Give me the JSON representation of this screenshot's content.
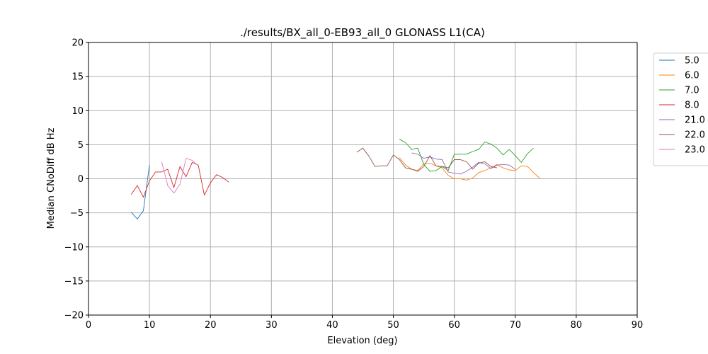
{
  "chart_data": {
    "type": "line",
    "title": "./results/BX_all_0-EB93_all_0 GLONASS L1(CA)",
    "xlabel": "Elevation (deg)",
    "ylabel": "Median CNoDiff dB Hz",
    "xlim": [
      0,
      90
    ],
    "ylim": [
      -20,
      20
    ],
    "xticks": [
      0,
      10,
      20,
      30,
      40,
      50,
      60,
      70,
      80,
      90
    ],
    "yticks": [
      -20,
      -15,
      -10,
      -5,
      0,
      5,
      10,
      15,
      20
    ],
    "xtick_labels": [
      "0",
      "10",
      "20",
      "30",
      "40",
      "50",
      "60",
      "70",
      "80",
      "90"
    ],
    "ytick_labels": [
      "−20",
      "−15",
      "−10",
      "−5",
      "0",
      "5",
      "10",
      "15",
      "20"
    ],
    "grid": true,
    "legend_position": "outside-right",
    "series": [
      {
        "name": "5.0",
        "color": "#1f77b4",
        "points": [
          [
            7,
            -4.9
          ],
          [
            8,
            -5.9
          ],
          [
            9,
            -4.7
          ],
          [
            10,
            2.0
          ]
        ]
      },
      {
        "name": "6.0",
        "color": "#ff7f0e",
        "points": [
          [
            51,
            3.1
          ],
          [
            52,
            2.0
          ],
          [
            53,
            1.4
          ],
          [
            54,
            1.2
          ],
          [
            55,
            2.2
          ],
          [
            56,
            2.3
          ],
          [
            57,
            1.9
          ],
          [
            58,
            1.6
          ],
          [
            59,
            0.5
          ],
          [
            60,
            0.0
          ],
          [
            61,
            0.0
          ],
          [
            62,
            -0.2
          ],
          [
            63,
            0.1
          ],
          [
            64,
            0.9
          ],
          [
            65,
            1.2
          ],
          [
            66,
            1.6
          ],
          [
            67,
            2.1
          ],
          [
            68,
            1.6
          ],
          [
            69,
            1.3
          ],
          [
            70,
            1.2
          ],
          [
            71,
            1.9
          ],
          [
            72,
            1.8
          ],
          [
            73,
            0.9
          ],
          [
            74,
            0.1
          ]
        ]
      },
      {
        "name": "7.0",
        "color": "#2ca02c",
        "points": [
          [
            51,
            5.8
          ],
          [
            52,
            5.3
          ],
          [
            53,
            4.3
          ],
          [
            54,
            4.5
          ],
          [
            55,
            2.1
          ],
          [
            56,
            1.1
          ],
          [
            57,
            1.2
          ],
          [
            58,
            1.8
          ],
          [
            59,
            1.2
          ],
          [
            60,
            3.6
          ],
          [
            61,
            3.6
          ],
          [
            62,
            3.6
          ],
          [
            63,
            4.0
          ],
          [
            64,
            4.3
          ],
          [
            65,
            5.4
          ],
          [
            66,
            5.1
          ],
          [
            67,
            4.5
          ],
          [
            68,
            3.5
          ],
          [
            69,
            4.3
          ],
          [
            70,
            3.4
          ],
          [
            71,
            2.4
          ],
          [
            72,
            3.7
          ],
          [
            73,
            4.5
          ]
        ]
      },
      {
        "name": "8.0",
        "color": "#d62728",
        "points": [
          [
            7,
            -2.3
          ],
          [
            8,
            -1.0
          ],
          [
            9,
            -2.7
          ],
          [
            10,
            -0.3
          ],
          [
            11,
            1.0
          ],
          [
            12,
            1.0
          ],
          [
            13,
            1.4
          ],
          [
            14,
            -1.3
          ],
          [
            15,
            1.8
          ],
          [
            16,
            0.3
          ],
          [
            17,
            2.4
          ],
          [
            18,
            2.0
          ],
          [
            19,
            -2.4
          ],
          [
            20,
            -0.6
          ],
          [
            21,
            0.6
          ],
          [
            22,
            0.2
          ],
          [
            23,
            -0.5
          ]
        ]
      },
      {
        "name": "21.0",
        "color": "#9467bd",
        "points": [
          [
            53,
            3.8
          ],
          [
            54,
            3.6
          ],
          [
            55,
            3.0
          ],
          [
            56,
            3.2
          ],
          [
            57,
            2.9
          ],
          [
            58,
            2.8
          ],
          [
            59,
            1.0
          ],
          [
            60,
            0.8
          ],
          [
            61,
            0.7
          ],
          [
            62,
            1.1
          ],
          [
            63,
            1.7
          ],
          [
            64,
            2.4
          ],
          [
            65,
            2.2
          ],
          [
            66,
            1.5
          ],
          [
            67,
            2.0
          ],
          [
            68,
            2.1
          ],
          [
            69,
            2.0
          ],
          [
            70,
            1.4
          ]
        ]
      },
      {
        "name": "22.0",
        "color": "#8c564b",
        "points": [
          [
            44,
            3.9
          ],
          [
            45,
            4.5
          ],
          [
            46,
            3.3
          ],
          [
            47,
            1.8
          ],
          [
            48,
            1.9
          ],
          [
            49,
            1.9
          ],
          [
            50,
            3.5
          ],
          [
            51,
            2.8
          ],
          [
            52,
            1.6
          ],
          [
            53,
            1.4
          ],
          [
            54,
            1.1
          ],
          [
            55,
            1.8
          ],
          [
            56,
            3.4
          ],
          [
            57,
            1.9
          ],
          [
            58,
            1.8
          ],
          [
            59,
            1.6
          ],
          [
            60,
            2.8
          ],
          [
            61,
            2.8
          ],
          [
            62,
            2.5
          ],
          [
            63,
            1.4
          ],
          [
            64,
            2.3
          ],
          [
            65,
            2.5
          ],
          [
            66,
            1.8
          ],
          [
            67,
            1.6
          ]
        ]
      },
      {
        "name": "23.0",
        "color": "#e377c2",
        "points": [
          [
            12,
            2.5
          ],
          [
            13,
            -1.0
          ],
          [
            14,
            -2.1
          ],
          [
            15,
            -0.8
          ],
          [
            16,
            3.0
          ],
          [
            17,
            2.7
          ],
          [
            18,
            1.9
          ]
        ]
      }
    ]
  }
}
